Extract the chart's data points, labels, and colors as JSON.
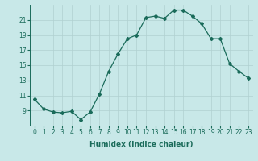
{
  "x": [
    0,
    1,
    2,
    3,
    4,
    5,
    6,
    7,
    8,
    9,
    10,
    11,
    12,
    13,
    14,
    15,
    16,
    17,
    18,
    19,
    20,
    21,
    22,
    23
  ],
  "y": [
    10.5,
    9.2,
    8.8,
    8.7,
    8.9,
    7.8,
    8.8,
    11.2,
    14.2,
    16.5,
    18.5,
    19.0,
    21.3,
    21.5,
    21.2,
    22.3,
    22.3,
    21.5,
    20.5,
    18.5,
    18.5,
    15.2,
    14.2,
    13.3
  ],
  "line_color": "#1a6b5a",
  "marker": "D",
  "marker_size": 2,
  "bg_color": "#c8e8e8",
  "grid_color": "#b0d0d0",
  "xlabel": "Humidex (Indice chaleur)",
  "xlim": [
    -0.5,
    23.5
  ],
  "ylim": [
    7,
    23
  ],
  "yticks": [
    9,
    11,
    13,
    15,
    17,
    19,
    21
  ],
  "xticks": [
    0,
    1,
    2,
    3,
    4,
    5,
    6,
    7,
    8,
    9,
    10,
    11,
    12,
    13,
    14,
    15,
    16,
    17,
    18,
    19,
    20,
    21,
    22,
    23
  ],
  "xtick_labels": [
    "0",
    "1",
    "2",
    "3",
    "4",
    "5",
    "6",
    "7",
    "8",
    "9",
    "10",
    "11",
    "12",
    "13",
    "14",
    "15",
    "16",
    "17",
    "18",
    "19",
    "20",
    "21",
    "22",
    "23"
  ],
  "tick_label_size": 5.5,
  "xlabel_size": 6.5,
  "linewidth": 0.9
}
